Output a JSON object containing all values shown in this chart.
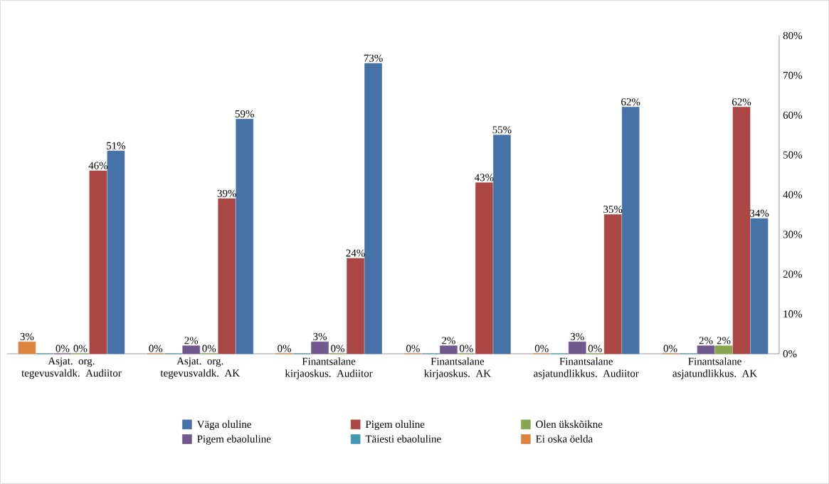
{
  "chart_data": {
    "type": "bar",
    "categories": [
      "Asjat. org. tegevusvaldk. Audiitor",
      "Asjat. org. tegevusvaldk. AK",
      "Finantsalane kirjaoskus. Audiitor",
      "Finantsalane kirjaoskus. AK",
      "Finantsalane asjatundlikkus. Audiitor",
      "Finantsalane asjatundlikkus. AK"
    ],
    "series": [
      {
        "name": "Väga oluline",
        "color": "#4572a7",
        "values": [
          51,
          59,
          73,
          55,
          62,
          34
        ],
        "value_labels": [
          "51%",
          "59%",
          "73%",
          "55%",
          "62%",
          "34%"
        ]
      },
      {
        "name": "Pigem oluline",
        "color": "#aa4643",
        "values": [
          46,
          39,
          24,
          43,
          35,
          62
        ],
        "value_labels": [
          "46%",
          "39%",
          "24%",
          "43%",
          "35%",
          "62%"
        ]
      },
      {
        "name": "Olen ükskõikne",
        "color": "#89a54e",
        "values": [
          0,
          0,
          0,
          0,
          0,
          2
        ],
        "value_labels": [
          "0%",
          "0%",
          "0%",
          "0%",
          "0%",
          "2%"
        ]
      },
      {
        "name": "Pigem ebaoluline",
        "color": "#71588f",
        "values": [
          0,
          2,
          3,
          2,
          3,
          2
        ],
        "value_labels": [
          "0%",
          "2%",
          "3%",
          "2%",
          "3%",
          "2%"
        ]
      },
      {
        "name": "Täiesti ebaoluline",
        "color": "#4198af",
        "values": [
          0,
          0,
          0,
          0,
          0,
          0
        ]
      },
      {
        "name": "Ei oska öelda",
        "color": "#db843d",
        "values": [
          3,
          0,
          0,
          0,
          0,
          0
        ],
        "value_labels": [
          "3%",
          "0%",
          "0%",
          "0%",
          "0%",
          "0%"
        ]
      }
    ],
    "ylim": [
      0,
      80
    ],
    "yticks": [
      {
        "value": 0,
        "label": "0%"
      },
      {
        "value": 10,
        "label": "10%"
      },
      {
        "value": 20,
        "label": "20%"
      },
      {
        "value": 30,
        "label": "30%"
      },
      {
        "value": 40,
        "label": "40%"
      },
      {
        "value": 50,
        "label": "50%"
      },
      {
        "value": 60,
        "label": "60%"
      },
      {
        "value": 70,
        "label": "70%"
      },
      {
        "value": 80,
        "label": "80%"
      }
    ],
    "grid": false,
    "legend": "bottom"
  }
}
